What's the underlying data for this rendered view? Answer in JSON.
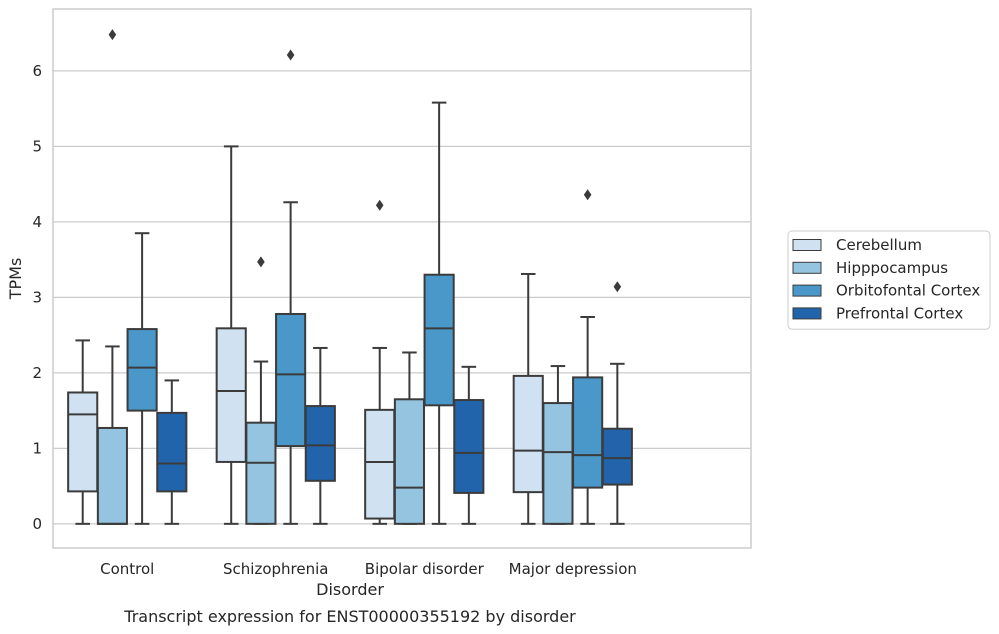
{
  "chart_data": {
    "type": "boxplot",
    "title": "",
    "caption": "Transcript expression for ENST00000355192 by disorder",
    "xlabel": "Disorder",
    "ylabel": "TPMs",
    "ylim": [
      -0.32,
      6.82
    ],
    "yticks": [
      0,
      1,
      2,
      3,
      4,
      5,
      6
    ],
    "grid": true,
    "legend_position": "right",
    "categories": [
      "Control",
      "Schizophrenia",
      "Bipolar disorder",
      "Major depression"
    ],
    "series": [
      {
        "name": "Cerebellum",
        "color": "#d0e1f2",
        "boxes": [
          {
            "min": 0,
            "q1": 0.43,
            "median": 1.45,
            "q3": 1.74,
            "max": 2.43,
            "outliers": []
          },
          {
            "min": 0,
            "q1": 0.82,
            "median": 1.76,
            "q3": 2.59,
            "max": 5.0,
            "outliers": []
          },
          {
            "min": 0,
            "q1": 0.07,
            "median": 0.82,
            "q3": 1.51,
            "max": 2.33,
            "outliers": [
              4.22
            ]
          },
          {
            "min": 0,
            "q1": 0.42,
            "median": 0.97,
            "q3": 1.96,
            "max": 3.31,
            "outliers": []
          }
        ]
      },
      {
        "name": "Hipppocampus",
        "color": "#94c4df",
        "boxes": [
          {
            "min": 0,
            "q1": 0,
            "median": 0,
            "q3": 1.27,
            "max": 2.35,
            "outliers": [
              6.48
            ]
          },
          {
            "min": 0,
            "q1": 0,
            "median": 0.81,
            "q3": 1.34,
            "max": 2.15,
            "outliers": [
              3.47
            ]
          },
          {
            "min": 0,
            "q1": 0,
            "median": 0.48,
            "q3": 1.65,
            "max": 2.27,
            "outliers": []
          },
          {
            "min": 0,
            "q1": 0,
            "median": 0.95,
            "q3": 1.6,
            "max": 2.09,
            "outliers": []
          }
        ]
      },
      {
        "name": "Orbitofontal Cortex",
        "color": "#4a98c9",
        "boxes": [
          {
            "min": 0,
            "q1": 1.5,
            "median": 2.07,
            "q3": 2.58,
            "max": 3.85,
            "outliers": []
          },
          {
            "min": 0,
            "q1": 1.03,
            "median": 1.98,
            "q3": 2.78,
            "max": 4.26,
            "outliers": [
              6.21
            ]
          },
          {
            "min": 0,
            "q1": 1.57,
            "median": 2.59,
            "q3": 3.3,
            "max": 5.58,
            "outliers": []
          },
          {
            "min": 0,
            "q1": 0.48,
            "median": 0.91,
            "q3": 1.94,
            "max": 2.74,
            "outliers": [
              4.36
            ]
          }
        ]
      },
      {
        "name": "Prefrontal Cortex",
        "color": "#2164ab",
        "boxes": [
          {
            "min": 0,
            "q1": 0.43,
            "median": 0.8,
            "q3": 1.47,
            "max": 1.9,
            "outliers": []
          },
          {
            "min": 0,
            "q1": 0.57,
            "median": 1.04,
            "q3": 1.56,
            "max": 2.33,
            "outliers": []
          },
          {
            "min": 0,
            "q1": 0.41,
            "median": 0.94,
            "q3": 1.64,
            "max": 2.08,
            "outliers": []
          },
          {
            "min": 0,
            "q1": 0.52,
            "median": 0.87,
            "q3": 1.26,
            "max": 2.12,
            "outliers": [
              3.14
            ]
          }
        ]
      }
    ]
  }
}
